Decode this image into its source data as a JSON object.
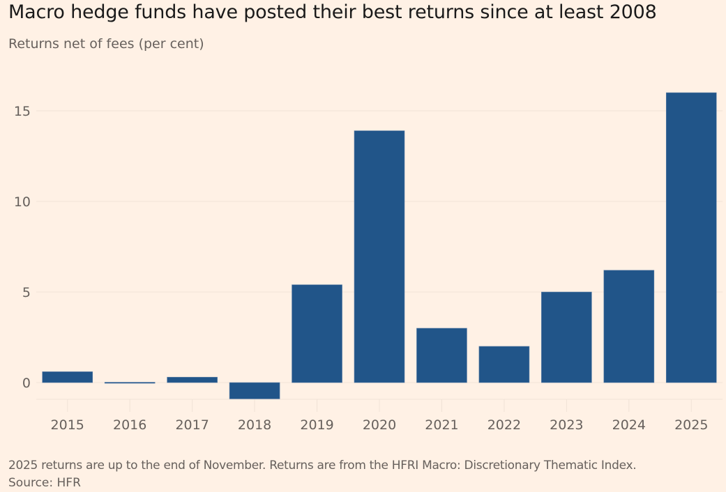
{
  "chart_data": {
    "type": "bar",
    "title": "Macro hedge funds have posted their best returns since at least 2008",
    "subtitle": "Returns net of fees (per cent)",
    "xlabel": "",
    "ylabel": "",
    "categories": [
      "2015",
      "2016",
      "2017",
      "2018",
      "2019",
      "2020",
      "2021",
      "2022",
      "2023",
      "2024",
      "2025"
    ],
    "values": [
      0.6,
      -0.05,
      0.3,
      -0.9,
      5.4,
      13.9,
      3.0,
      2.0,
      5.0,
      6.2,
      16.0
    ],
    "yticks": [
      0,
      5,
      10,
      15
    ],
    "ytick_labels": [
      "0",
      "5",
      "10",
      "15"
    ],
    "ylim": [
      -1,
      17
    ],
    "grid": true,
    "bar_color": "#215589",
    "note": "2025 returns are up to the end of November. Returns are from the HFRI Macro: Discretionary Thematic Index.",
    "source": "Source: HFR"
  }
}
